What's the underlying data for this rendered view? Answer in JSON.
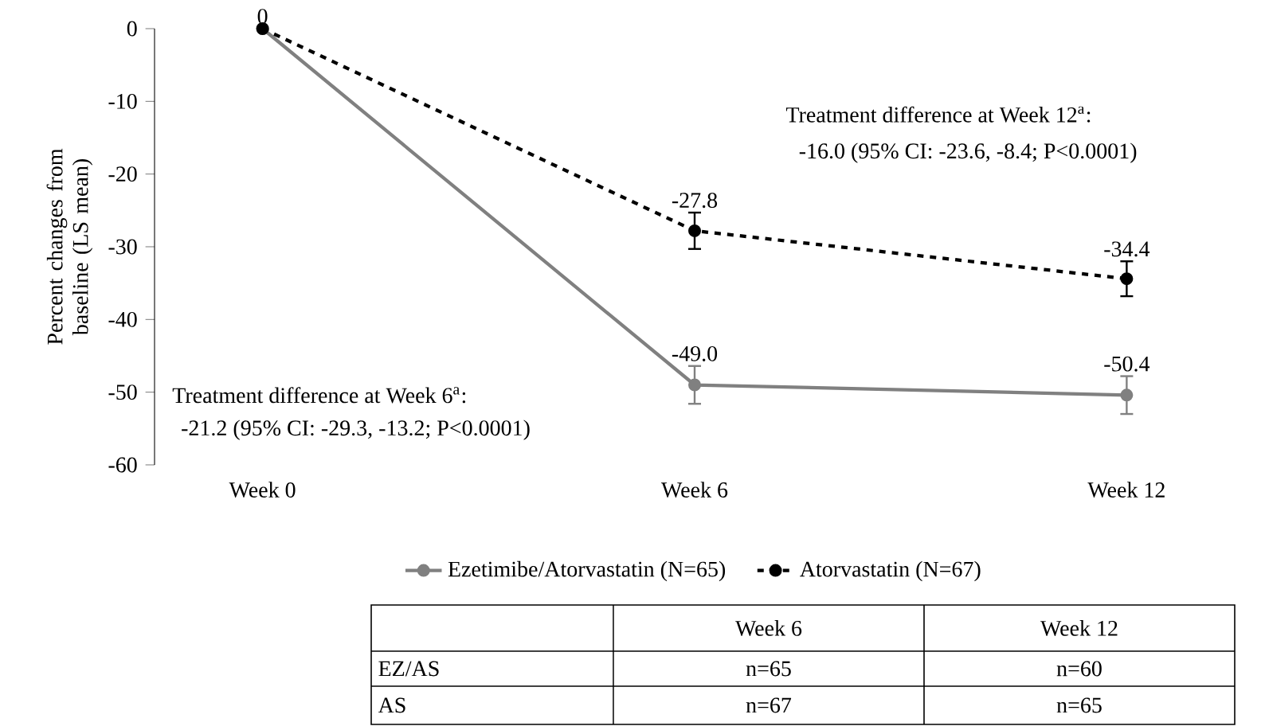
{
  "chart_data": {
    "type": "line",
    "ylabel": "Percent changes from baseline (LS mean)",
    "categories": [
      "Week 0",
      "Week 6",
      "Week 12"
    ],
    "series": [
      {
        "name": "Ezetimibe/Atorvastatin (N=65)",
        "color": "#808080",
        "values": [
          0,
          -49.0,
          -50.4
        ],
        "errors": [
          null,
          2.6,
          2.6
        ],
        "value_labels": [
          null,
          "-49.0",
          "-50.4"
        ],
        "line_style": "solid"
      },
      {
        "name": "Atorvastatin (N=67)",
        "color": "#000000",
        "values": [
          0,
          -27.8,
          -34.4
        ],
        "errors": [
          null,
          2.5,
          2.4
        ],
        "value_labels": [
          "0",
          "-27.8",
          "-34.4"
        ],
        "line_style": "dashed"
      }
    ],
    "ylim": [
      -60,
      0
    ],
    "yticks": [
      -60,
      -50,
      -40,
      -30,
      -20,
      -10,
      0
    ],
    "marker": "circle",
    "legend": "bottom",
    "grid": false,
    "annotations": [
      "Treatment difference at Week 12$^{a}$:",
      "-16.0 (95% CI: -23.6, -8.4; P<0.0001)",
      "Treatment difference at Week 6$^{a}$:",
      "-21.2 (95% CI: -29.3, -13.2; P<0.0001)",
      "Week 6",
      "Week 12",
      "EZ/AS",
      "n=65",
      "n=60",
      "AS",
      "n=67",
      "n=65"
    ]
  }
}
